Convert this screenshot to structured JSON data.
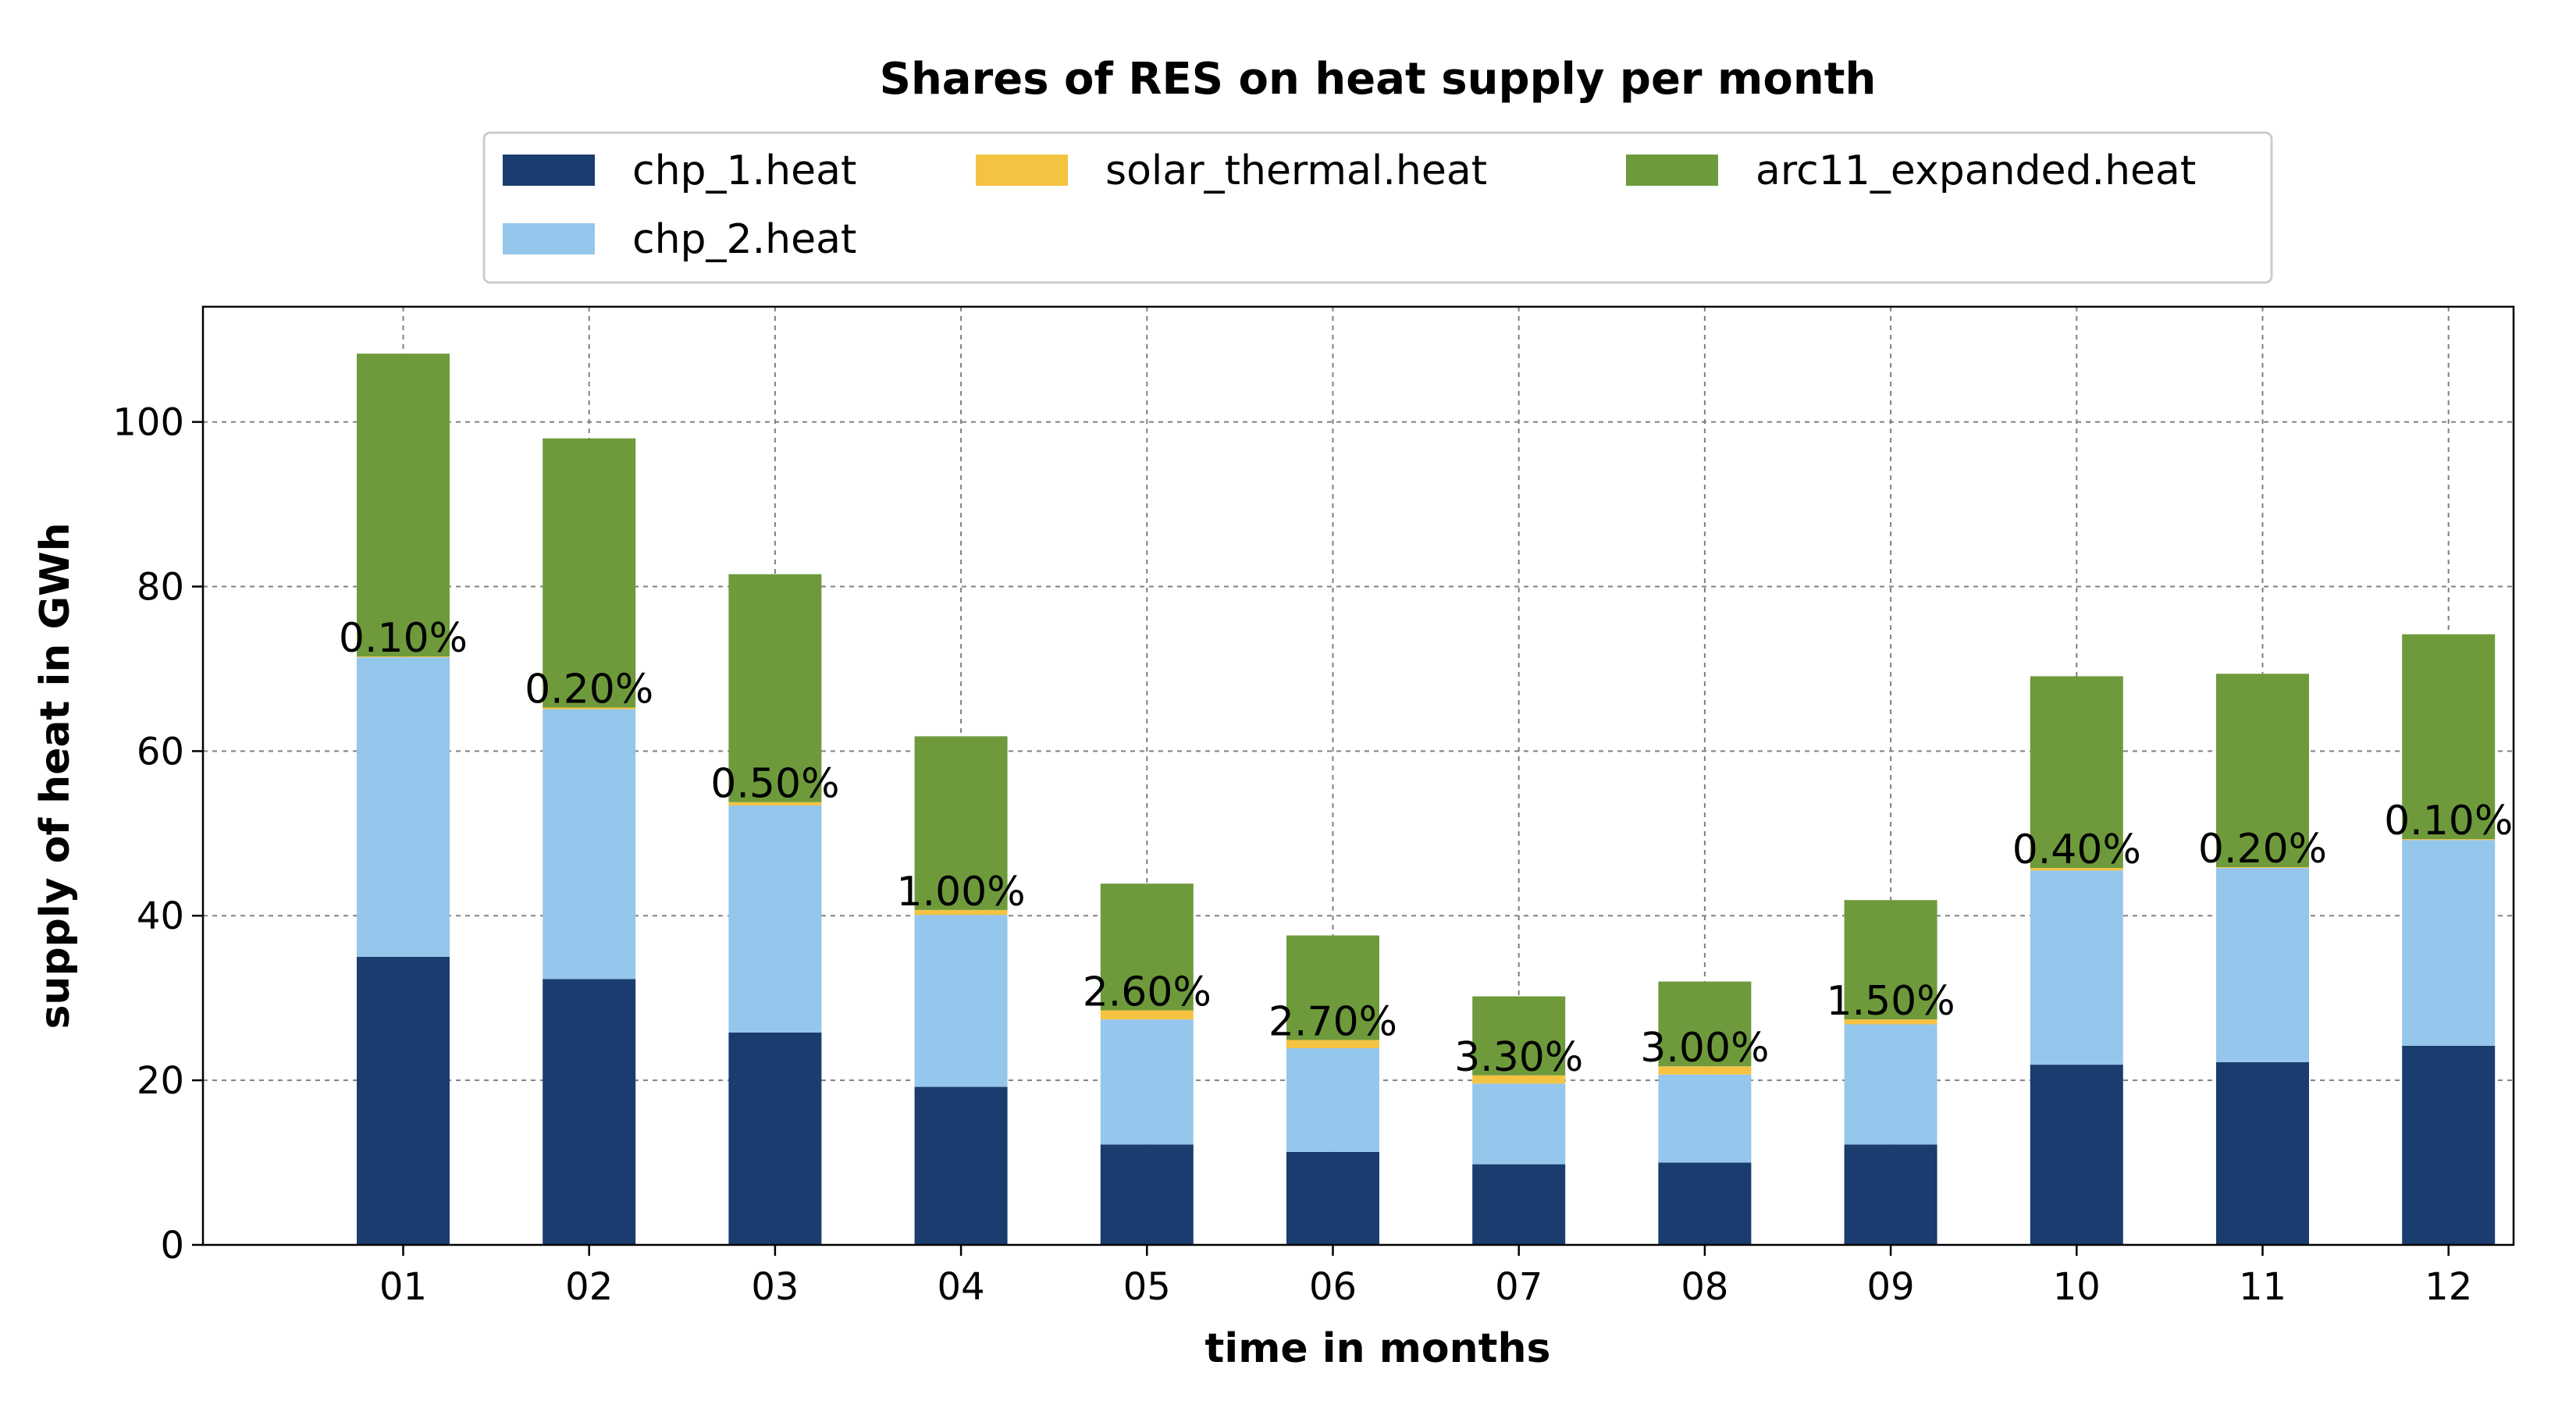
{
  "chart_data": {
    "type": "bar",
    "stacked": true,
    "title": "Shares of RES on heat supply per month",
    "xlabel": "time in months",
    "ylabel": "supply of heat in GWh",
    "ylim": [
      0,
      114
    ],
    "yticks": [
      0,
      20,
      40,
      60,
      80,
      100
    ],
    "grid": true,
    "legend_position": "top-center",
    "categories": [
      "01",
      "02",
      "03",
      "04",
      "05",
      "06",
      "07",
      "08",
      "09",
      "10",
      "11",
      "12"
    ],
    "series": [
      {
        "name": "chp_1.heat",
        "color": "#1a3c6e",
        "values": [
          35.0,
          32.3,
          25.8,
          19.2,
          12.2,
          11.3,
          9.8,
          10.0,
          12.2,
          21.9,
          22.2,
          24.2
        ]
      },
      {
        "name": "chp_2.heat",
        "color": "#95c6ec",
        "values": [
          36.4,
          32.8,
          27.6,
          20.9,
          15.2,
          12.6,
          9.8,
          10.7,
          14.6,
          23.6,
          23.6,
          25.0
        ]
      },
      {
        "name": "solar_thermal.heat",
        "color": "#f5c342",
        "values": [
          0.1,
          0.2,
          0.4,
          0.6,
          1.1,
          1.0,
          1.0,
          1.0,
          0.6,
          0.3,
          0.1,
          0.1
        ]
      },
      {
        "name": "arc11_expanded.heat",
        "color": "#6e9a3c",
        "values": [
          36.8,
          32.7,
          27.7,
          21.1,
          15.4,
          12.7,
          9.6,
          10.3,
          14.5,
          23.3,
          23.5,
          24.9
        ]
      }
    ],
    "annotations": [
      "0.10%",
      "0.20%",
      "0.50%",
      "1.00%",
      "2.60%",
      "2.70%",
      "3.30%",
      "3.00%",
      "1.50%",
      "0.40%",
      "0.20%",
      "0.10%"
    ],
    "legend_layout": [
      [
        "chp_1.heat",
        "chp_2.heat"
      ],
      [
        "solar_thermal.heat"
      ],
      [
        "arc11_expanded.heat"
      ]
    ]
  }
}
